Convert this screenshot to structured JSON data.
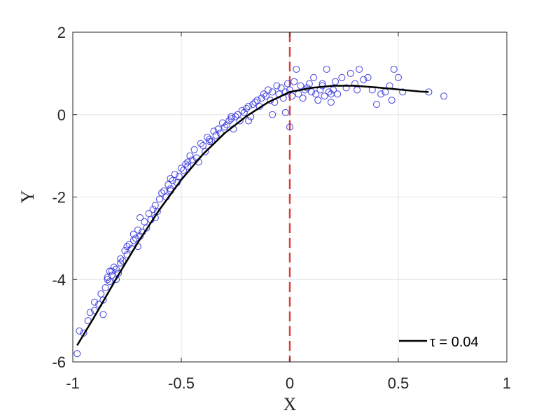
{
  "chart_data": {
    "type": "scatter",
    "xlabel": "X",
    "ylabel": "Y",
    "xlim": [
      -1,
      1
    ],
    "ylim": [
      -6,
      2
    ],
    "xticks": [
      "-1",
      "-0.5",
      "0",
      "0.5",
      "1"
    ],
    "xtick_values": [
      -1,
      -0.5,
      0,
      0.5,
      1
    ],
    "yticks": [
      "-6",
      "-4",
      "-2",
      "0",
      "2"
    ],
    "ytick_values": [
      -6,
      -4,
      -2,
      0,
      2
    ],
    "grid": true,
    "legend": {
      "placement": "bottom-right",
      "entries": [
        {
          "label": "τ = 0.04",
          "color": "#000000"
        }
      ]
    },
    "vertical_line": {
      "x": 0,
      "color": "#d94040",
      "style": "dashed"
    },
    "scatter_color": "#3333dd",
    "fit_curve": {
      "color": "#000000",
      "x": [
        -0.98,
        -0.9,
        -0.8,
        -0.7,
        -0.6,
        -0.5,
        -0.4,
        -0.3,
        -0.2,
        -0.1,
        0,
        0.1,
        0.2,
        0.3,
        0.4,
        0.5,
        0.6,
        0.64
      ],
      "y": [
        -5.6,
        -4.9,
        -3.98,
        -3.1,
        -2.3,
        -1.58,
        -0.96,
        -0.45,
        -0.04,
        0.3,
        0.55,
        0.65,
        0.7,
        0.7,
        0.66,
        0.61,
        0.56,
        0.55
      ]
    },
    "points": {
      "x": [
        -0.98,
        -0.97,
        -0.95,
        -0.93,
        -0.92,
        -0.9,
        -0.9,
        -0.88,
        -0.87,
        -0.86,
        -0.85,
        -0.84,
        -0.84,
        -0.83,
        -0.82,
        -0.82,
        -0.81,
        -0.8,
        -0.8,
        -0.79,
        -0.78,
        -0.78,
        -0.77,
        -0.76,
        -0.75,
        -0.75,
        -0.74,
        -0.73,
        -0.72,
        -0.72,
        -0.71,
        -0.7,
        -0.7,
        -0.69,
        -0.68,
        -0.67,
        -0.66,
        -0.65,
        -0.64,
        -0.63,
        -0.62,
        -0.61,
        -0.6,
        -0.59,
        -0.58,
        -0.57,
        -0.56,
        -0.55,
        -0.55,
        -0.54,
        -0.53,
        -0.52,
        -0.51,
        -0.5,
        -0.49,
        -0.48,
        -0.47,
        -0.46,
        -0.45,
        -0.44,
        -0.43,
        -0.42,
        -0.41,
        -0.4,
        -0.39,
        -0.38,
        -0.37,
        -0.36,
        -0.35,
        -0.34,
        -0.33,
        -0.32,
        -0.31,
        -0.3,
        -0.29,
        -0.28,
        -0.27,
        -0.26,
        -0.25,
        -0.24,
        -0.23,
        -0.22,
        -0.21,
        -0.2,
        -0.19,
        -0.18,
        -0.17,
        -0.16,
        -0.15,
        -0.14,
        -0.13,
        -0.12,
        -0.11,
        -0.1,
        -0.09,
        -0.08,
        -0.07,
        -0.06,
        -0.05,
        -0.04,
        -0.03,
        -0.02,
        -0.01,
        0.0,
        0.01,
        0.02,
        0.03,
        0.04,
        0.05,
        0.06,
        0.07,
        0.08,
        0.09,
        0.1,
        0.11,
        0.12,
        0.13,
        0.14,
        0.15,
        0.16,
        0.17,
        0.18,
        0.19,
        0.2,
        0.21,
        0.22,
        0.24,
        0.26,
        0.28,
        0.3,
        0.32,
        0.34,
        0.36,
        0.38,
        0.4,
        0.42,
        0.44,
        0.46,
        0.48,
        0.5,
        0.52,
        0.64,
        0.71,
        -0.02,
        0.0,
        -0.27,
        -0.86,
        -0.83,
        -0.69,
        -0.62,
        -0.55,
        -0.47,
        -0.37,
        -0.19,
        -0.08,
        0.15,
        0.19,
        0.31,
        0.47
      ],
      "y": [
        -5.8,
        -5.25,
        -5.3,
        -5.0,
        -4.8,
        -4.75,
        -4.55,
        -4.6,
        -4.35,
        -4.5,
        -4.2,
        -4.0,
        -3.95,
        -4.05,
        -3.8,
        -3.9,
        -3.7,
        -3.75,
        -4.0,
        -3.85,
        -3.5,
        -3.6,
        -3.55,
        -3.3,
        -3.2,
        -3.4,
        -3.15,
        -3.25,
        -3.05,
        -2.9,
        -3.0,
        -2.8,
        -3.2,
        -2.5,
        -2.85,
        -2.6,
        -2.75,
        -2.4,
        -2.55,
        -2.3,
        -2.2,
        -2.35,
        -2.05,
        -1.9,
        -1.85,
        -2.0,
        -1.7,
        -1.55,
        -1.8,
        -1.6,
        -1.45,
        -1.65,
        -1.5,
        -1.3,
        -1.35,
        -1.2,
        -1.25,
        -1.0,
        -1.1,
        -0.85,
        -1.05,
        -1.15,
        -0.7,
        -0.75,
        -0.9,
        -0.55,
        -0.6,
        -0.65,
        -0.4,
        -0.5,
        -0.35,
        -0.45,
        -0.2,
        -0.3,
        -0.25,
        -0.15,
        -0.1,
        -0.35,
        -0.05,
        0.0,
        -0.15,
        0.1,
        0.05,
        0.15,
        0.2,
        -0.05,
        0.25,
        0.3,
        0.35,
        0.2,
        0.4,
        0.5,
        0.45,
        0.6,
        0.35,
        0.55,
        0.3,
        0.7,
        0.5,
        0.65,
        0.4,
        0.55,
        0.75,
        0.6,
        0.45,
        0.8,
        1.1,
        0.5,
        0.7,
        0.4,
        0.6,
        0.65,
        0.75,
        0.55,
        0.9,
        0.5,
        0.35,
        0.6,
        0.7,
        0.45,
        1.1,
        0.55,
        0.3,
        0.6,
        0.8,
        0.5,
        0.9,
        0.65,
        1.0,
        0.75,
        1.1,
        0.85,
        0.9,
        0.6,
        0.25,
        0.5,
        0.55,
        0.7,
        1.1,
        0.9,
        0.55,
        0.55,
        0.45,
        0.05,
        -0.3,
        -0.05,
        -4.85,
        -3.8,
        -2.95,
        -2.5,
        -1.85,
        -1.15,
        -0.65,
        -0.15,
        0.0,
        0.75,
        0.5,
        0.6,
        0.35
      ]
    }
  }
}
